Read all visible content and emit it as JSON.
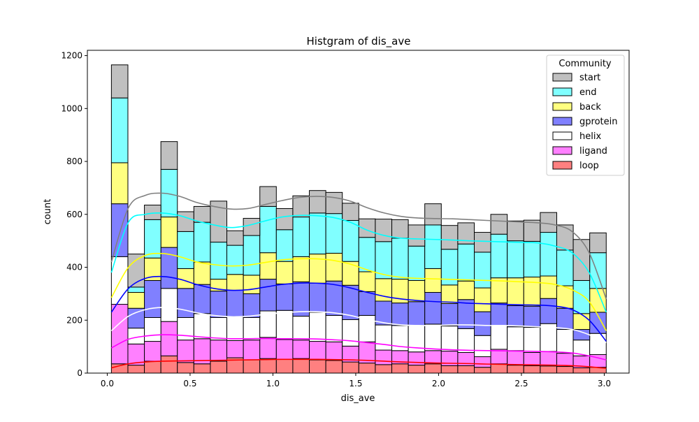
{
  "chart_data": {
    "type": "bar",
    "stacked": true,
    "title": "Histgram of dis_ave",
    "xlabel": "dis_ave",
    "ylabel": "count",
    "xlim": [
      -0.12,
      3.15
    ],
    "ylim": [
      0,
      1220
    ],
    "xticks": [
      0.0,
      0.5,
      1.0,
      1.5,
      2.0,
      2.5,
      3.0
    ],
    "xtick_labels": [
      "0.0",
      "0.5",
      "1.0",
      "1.5",
      "2.0",
      "2.5",
      "3.0"
    ],
    "yticks": [
      0,
      200,
      400,
      600,
      800,
      1000,
      1200
    ],
    "ytick_labels": [
      "0",
      "200",
      "400",
      "600",
      "800",
      "1000",
      "1200"
    ],
    "bin_edges": [
      0.025,
      0.1246,
      0.2241,
      0.3237,
      0.4233,
      0.5228,
      0.6224,
      0.7219,
      0.8215,
      0.9211,
      1.0206,
      1.1202,
      1.2198,
      1.3193,
      1.4189,
      1.5184,
      1.618,
      1.7176,
      1.8171,
      1.9167,
      2.0163,
      2.1158,
      2.2154,
      2.3149,
      2.4145,
      2.5141,
      2.6136,
      2.7132,
      2.8128,
      2.9123,
      3.0119
    ],
    "legend": {
      "title": "Community",
      "placement": "top-right"
    },
    "series": [
      {
        "name": "loop",
        "color": "#ff8080",
        "line_color": "#ff0000",
        "values": [
          35,
          30,
          45,
          65,
          40,
          35,
          45,
          58,
          50,
          55,
          52,
          55,
          50,
          48,
          42,
          38,
          32,
          35,
          30,
          35,
          28,
          28,
          22,
          35,
          30,
          28,
          27,
          25,
          20,
          22
        ],
        "kde": [
          20,
          35,
          42,
          45,
          46,
          47,
          48,
          49,
          50,
          51,
          52,
          52,
          52,
          51,
          50,
          48,
          45,
          42,
          40,
          38,
          37,
          36,
          34,
          33,
          32,
          31,
          30,
          28,
          24,
          18
        ]
      },
      {
        "name": "ligand",
        "color": "#ff80ff",
        "line_color": "#ff00ff",
        "values": [
          225,
          80,
          75,
          130,
          85,
          95,
          80,
          65,
          75,
          80,
          75,
          70,
          70,
          70,
          60,
          80,
          55,
          50,
          50,
          50,
          55,
          50,
          40,
          55,
          55,
          50,
          55,
          50,
          45,
          48
        ],
        "kde": [
          95,
          128,
          140,
          145,
          143,
          138,
          133,
          130,
          130,
          131,
          130,
          130,
          129,
          126,
          122,
          115,
          108,
          100,
          95,
          91,
          88,
          86,
          85,
          84,
          83,
          82,
          80,
          76,
          65,
          50
        ]
      },
      {
        "name": "helix",
        "color": "#ffffff",
        "line_color": "#ffffff",
        "values": [
          180,
          60,
          90,
          125,
          85,
          95,
          85,
          90,
          85,
          100,
          110,
          90,
          110,
          100,
          100,
          100,
          95,
          95,
          100,
          100,
          95,
          90,
          80,
          90,
          90,
          95,
          105,
          90,
          60,
          80
        ],
        "kde": [
          160,
          215,
          240,
          248,
          242,
          228,
          218,
          213,
          215,
          222,
          228,
          232,
          232,
          228,
          218,
          202,
          190,
          182,
          180,
          180,
          182,
          182,
          180,
          180,
          178,
          175,
          172,
          165,
          145,
          115
        ]
      },
      {
        "name": "gprotein",
        "color": "#8080ff",
        "line_color": "#0000ff",
        "values": [
          200,
          75,
          140,
          155,
          110,
          110,
          100,
          100,
          90,
          120,
          100,
          130,
          110,
          130,
          130,
          90,
          90,
          85,
          90,
          120,
          85,
          110,
          90,
          85,
          80,
          80,
          95,
          80,
          40,
          80
        ],
        "kde": [
          230,
          320,
          358,
          365,
          355,
          335,
          320,
          313,
          315,
          325,
          335,
          340,
          340,
          335,
          322,
          305,
          290,
          280,
          274,
          270,
          268,
          264,
          262,
          260,
          258,
          257,
          253,
          240,
          200,
          120
        ]
      },
      {
        "name": "back",
        "color": "#ffff80",
        "line_color": "#ffff00",
        "values": [
          155,
          60,
          85,
          115,
          75,
          85,
          45,
          60,
          70,
          100,
          85,
          95,
          110,
          105,
          90,
          75,
          85,
          90,
          80,
          90,
          70,
          70,
          90,
          95,
          105,
          110,
          85,
          85,
          60,
          90
        ],
        "kde": [
          285,
          400,
          445,
          452,
          440,
          420,
          410,
          405,
          408,
          418,
          428,
          432,
          432,
          426,
          412,
          390,
          372,
          362,
          358,
          356,
          354,
          352,
          350,
          348,
          345,
          342,
          335,
          315,
          270,
          160
        ]
      },
      {
        "name": "end",
        "color": "#80ffff",
        "line_color": "#00ffff",
        "values": [
          245,
          20,
          145,
          180,
          140,
          150,
          140,
          110,
          150,
          175,
          120,
          150,
          155,
          150,
          155,
          130,
          140,
          155,
          130,
          165,
          135,
          140,
          135,
          165,
          140,
          135,
          165,
          135,
          125,
          135
        ],
        "kde": [
          380,
          570,
          600,
          605,
          595,
          575,
          560,
          550,
          558,
          575,
          590,
          596,
          595,
          588,
          570,
          540,
          520,
          510,
          507,
          505,
          503,
          500,
          498,
          496,
          494,
          492,
          480,
          455,
          380,
          230
        ]
      },
      {
        "name": "start",
        "color": "#c0c0c0",
        "line_color": "#808080",
        "values": [
          125,
          125,
          55,
          105,
          75,
          60,
          155,
          55,
          65,
          75,
          80,
          80,
          85,
          80,
          65,
          70,
          85,
          70,
          80,
          80,
          90,
          80,
          75,
          75,
          75,
          80,
          75,
          95,
          155,
          75
        ],
        "kde": [
          420,
          625,
          672,
          680,
          668,
          645,
          630,
          620,
          622,
          637,
          652,
          664,
          668,
          664,
          650,
          625,
          605,
          592,
          586,
          584,
          583,
          580,
          577,
          574,
          571,
          568,
          560,
          535,
          455,
          280
        ]
      }
    ]
  }
}
